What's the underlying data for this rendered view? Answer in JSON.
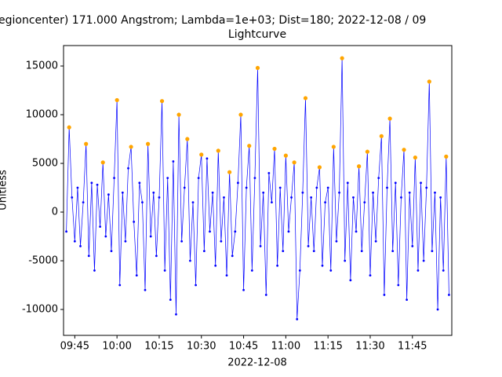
{
  "chart_data": {
    "type": "line",
    "title": "egioncenter) 171.000 Angstrom; Lambda=1e+03; Dist=180; 2022-12-08 / 09",
    "subtitle": "Lightcurve",
    "xlabel": "2022-12-08",
    "ylabel": "Unitless",
    "xlim": [
      "09:41",
      "11:59"
    ],
    "xticks": [
      "09:45",
      "10:00",
      "10:15",
      "10:30",
      "10:45",
      "11:00",
      "11:15",
      "11:30",
      "11:45"
    ],
    "ylim": [
      -12660,
      17100
    ],
    "yticks": [
      -10000,
      -5000,
      0,
      5000,
      10000,
      15000
    ],
    "x": [
      "09:42",
      "09:43",
      "09:44",
      "09:45",
      "09:46",
      "09:47",
      "09:48",
      "09:49",
      "09:50",
      "09:51",
      "09:52",
      "09:53",
      "09:54",
      "09:55",
      "09:56",
      "09:57",
      "09:58",
      "09:59",
      "10:00",
      "10:01",
      "10:02",
      "10:03",
      "10:04",
      "10:05",
      "10:06",
      "10:07",
      "10:08",
      "10:09",
      "10:10",
      "10:11",
      "10:12",
      "10:13",
      "10:14",
      "10:15",
      "10:16",
      "10:17",
      "10:18",
      "10:19",
      "10:20",
      "10:21",
      "10:22",
      "10:23",
      "10:24",
      "10:25",
      "10:26",
      "10:27",
      "10:28",
      "10:29",
      "10:30",
      "10:31",
      "10:32",
      "10:33",
      "10:34",
      "10:35",
      "10:36",
      "10:37",
      "10:38",
      "10:39",
      "10:40",
      "10:41",
      "10:42",
      "10:43",
      "10:44",
      "10:45",
      "10:46",
      "10:47",
      "10:48",
      "10:49",
      "10:50",
      "10:51",
      "10:52",
      "10:53",
      "10:54",
      "10:55",
      "10:56",
      "10:57",
      "10:58",
      "10:59",
      "11:00",
      "11:01",
      "11:02",
      "11:03",
      "11:04",
      "11:05",
      "11:06",
      "11:07",
      "11:08",
      "11:09",
      "11:10",
      "11:11",
      "11:12",
      "11:13",
      "11:14",
      "11:15",
      "11:16",
      "11:17",
      "11:18",
      "11:19",
      "11:20",
      "11:21",
      "11:22",
      "11:23",
      "11:24",
      "11:25",
      "11:26",
      "11:27",
      "11:28",
      "11:29",
      "11:30",
      "11:31",
      "11:32",
      "11:33",
      "11:34",
      "11:35",
      "11:36",
      "11:37",
      "11:38",
      "11:39",
      "11:40",
      "11:41",
      "11:42",
      "11:43",
      "11:44",
      "11:45",
      "11:46",
      "11:47",
      "11:48",
      "11:49",
      "11:50",
      "11:51",
      "11:52",
      "11:53",
      "11:54",
      "11:55",
      "11:56",
      "11:57",
      "11:58"
    ],
    "series": [
      {
        "color": "#0000ff",
        "values": [
          -2000,
          8700,
          1500,
          -3000,
          2500,
          -3500,
          1000,
          7000,
          -4500,
          3000,
          -6000,
          2800,
          -1500,
          5100,
          -2500,
          1800,
          -4000,
          3500,
          11500,
          -7500,
          2000,
          -3000,
          4500,
          6700,
          -1000,
          -6500,
          3000,
          1000,
          -8000,
          7000,
          -2500,
          2000,
          -4500,
          1500,
          11400,
          -6000,
          3500,
          -9000,
          5200,
          -10500,
          10000,
          -3000,
          2500,
          7500,
          -5000,
          1000,
          -7500,
          3500,
          5900,
          -4000,
          5500,
          -2000,
          2000,
          -5500,
          6300,
          -3000,
          1500,
          -6500,
          4100,
          -4500,
          -2000,
          3000,
          10000,
          -8000,
          2500,
          6800,
          -6000,
          3500,
          14800,
          -3500,
          2000,
          -8500,
          4000,
          1000,
          6500,
          -5500,
          2500,
          -4000,
          5800,
          -2000,
          1500,
          5100,
          -11000,
          -6000,
          2000,
          11700,
          -3500,
          1500,
          -4000,
          2500,
          4600,
          -5500,
          1000,
          2500,
          -6000,
          6700,
          -3000,
          2000,
          15800,
          -5000,
          3000,
          -7000,
          1500,
          -2000,
          4700,
          -4000,
          1000,
          6200,
          -6500,
          2000,
          -3000,
          3500,
          7800,
          -8500,
          2500,
          9600,
          -4000,
          3000,
          -7500,
          1500,
          6400,
          -9000,
          2000,
          -3500,
          5600,
          -6000,
          3000,
          -5000,
          2500,
          13400,
          -4000,
          2000,
          -10000,
          1500,
          -6000,
          5700,
          -8500
        ]
      }
    ],
    "peaks": {
      "color": "#ffa500",
      "x": [
        "09:43",
        "09:49",
        "09:55",
        "10:00",
        "10:05",
        "10:11",
        "10:16",
        "10:22",
        "10:25",
        "10:30",
        "10:36",
        "10:40",
        "10:44",
        "10:47",
        "10:50",
        "10:56",
        "11:00",
        "11:03",
        "11:07",
        "11:12",
        "11:17",
        "11:20",
        "11:26",
        "11:29",
        "11:34",
        "11:37",
        "11:42",
        "11:46",
        "11:51",
        "11:57"
      ],
      "values": [
        8700,
        7000,
        5100,
        11500,
        6700,
        7000,
        11400,
        10000,
        7500,
        5900,
        6300,
        4100,
        10000,
        6800,
        14800,
        6500,
        5800,
        5100,
        11700,
        4600,
        6700,
        15800,
        4700,
        6200,
        7800,
        9600,
        6400,
        5600,
        13400,
        5700
      ]
    }
  }
}
